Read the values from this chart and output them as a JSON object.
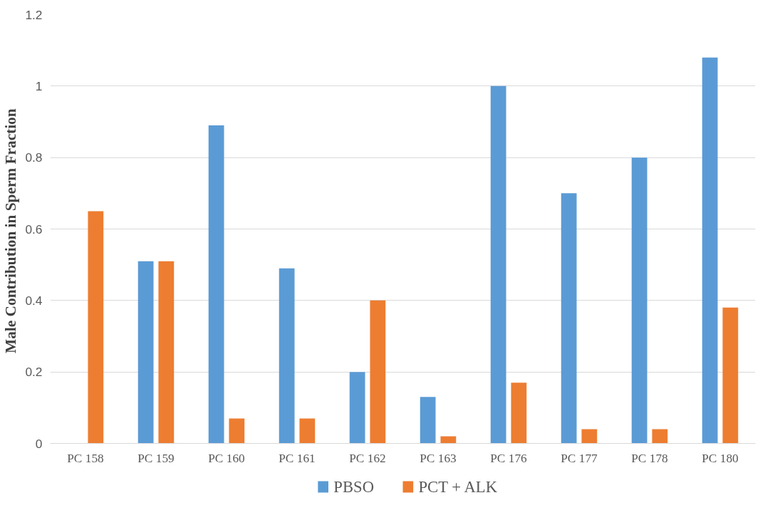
{
  "chart_data": {
    "type": "bar",
    "ylabel": "Male Contribution  in Sperm Fraction",
    "categories": [
      "PC 158",
      "PC 159",
      "PC 160",
      "PC 161",
      "PC 162",
      "PC 163",
      "PC 176",
      "PC 177",
      "PC 178",
      "PC 180"
    ],
    "series": [
      {
        "name": "PBSO",
        "color": "#5b9bd5",
        "values": [
          0,
          0.51,
          0.89,
          0.49,
          0.2,
          0.13,
          1.0,
          0.7,
          0.8,
          1.08
        ]
      },
      {
        "name": "PCT + ALK",
        "color": "#ed7d31",
        "values": [
          0.65,
          0.51,
          0.07,
          0.07,
          0.4,
          0.02,
          0.17,
          0.04,
          0.04,
          0.38
        ]
      }
    ],
    "ylim": [
      0,
      1.2
    ],
    "yticks": [
      0,
      0.2,
      0.4,
      0.6,
      0.8,
      1,
      1.2
    ],
    "grid": "y",
    "legend": "bottom"
  }
}
